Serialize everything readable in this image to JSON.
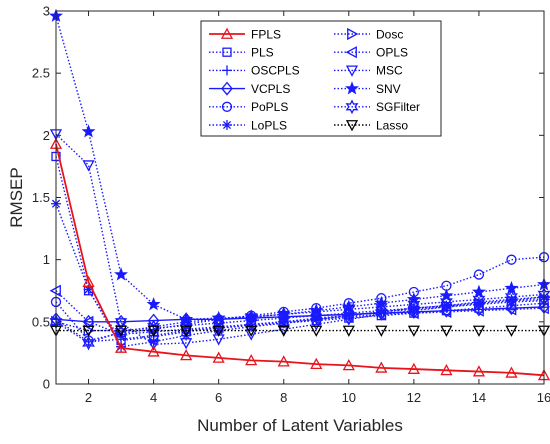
{
  "chart_data": {
    "type": "line",
    "xlabel": "Number of Latent Variables",
    "ylabel": "RMSEP",
    "xlim": [
      1,
      16
    ],
    "ylim": [
      0,
      3
    ],
    "xticks": [
      "2",
      "4",
      "6",
      "8",
      "10",
      "12",
      "14",
      "16"
    ],
    "yticks": [
      "0",
      "0.5",
      "1",
      "1.5",
      "2",
      "2.5",
      "3"
    ],
    "legend_position": "top-center",
    "grid": false,
    "x": [
      1,
      2,
      3,
      4,
      5,
      6,
      7,
      8,
      9,
      10,
      11,
      12,
      13,
      14,
      15,
      16
    ],
    "series": [
      {
        "name": "FPLS",
        "color": "#e8141c",
        "marker": "triangle-up",
        "style": "solid",
        "values": [
          1.93,
          0.82,
          0.29,
          0.26,
          0.23,
          0.21,
          0.19,
          0.18,
          0.16,
          0.15,
          0.13,
          0.12,
          0.11,
          0.1,
          0.09,
          0.07
        ]
      },
      {
        "name": "PLS",
        "color": "#1a1aff",
        "marker": "square",
        "style": "dotted",
        "values": [
          1.83,
          0.75,
          0.35,
          0.38,
          0.42,
          0.45,
          0.47,
          0.49,
          0.51,
          0.53,
          0.55,
          0.57,
          0.59,
          0.61,
          0.63,
          0.65
        ]
      },
      {
        "name": "OSCPLS",
        "color": "#1a1aff",
        "marker": "plus",
        "style": "dotted",
        "values": [
          0.52,
          0.34,
          0.36,
          0.39,
          0.43,
          0.45,
          0.48,
          0.5,
          0.53,
          0.55,
          0.58,
          0.6,
          0.62,
          0.65,
          0.67,
          0.7
        ]
      },
      {
        "name": "VCPLS",
        "color": "#1a1aff",
        "marker": "diamond",
        "style": "solid",
        "values": [
          0.52,
          0.5,
          0.5,
          0.51,
          0.52,
          0.52,
          0.53,
          0.54,
          0.55,
          0.56,
          0.57,
          0.58,
          0.59,
          0.6,
          0.61,
          0.62
        ]
      },
      {
        "name": "PoPLS",
        "color": "#1a1aff",
        "marker": "circle",
        "style": "dotted",
        "values": [
          0.66,
          0.35,
          0.41,
          0.44,
          0.48,
          0.52,
          0.55,
          0.58,
          0.61,
          0.65,
          0.69,
          0.74,
          0.79,
          0.88,
          1.0,
          1.02
        ]
      },
      {
        "name": "LoPLS",
        "color": "#1a1aff",
        "marker": "asterisk",
        "style": "dotted",
        "values": [
          1.45,
          0.76,
          0.3,
          0.34,
          0.39,
          0.43,
          0.46,
          0.49,
          0.52,
          0.55,
          0.58,
          0.61,
          0.63,
          0.66,
          0.68,
          0.7
        ]
      },
      {
        "name": "Dosc",
        "color": "#1a1aff",
        "marker": "triangle-right",
        "style": "dotted",
        "values": [
          0.5,
          0.43,
          0.43,
          0.45,
          0.47,
          0.49,
          0.51,
          0.53,
          0.55,
          0.57,
          0.59,
          0.61,
          0.63,
          0.65,
          0.67,
          0.68
        ]
      },
      {
        "name": "OPLS",
        "color": "#1a1aff",
        "marker": "triangle-left",
        "style": "dotted",
        "values": [
          0.75,
          0.5,
          0.4,
          0.42,
          0.44,
          0.46,
          0.48,
          0.5,
          0.52,
          0.54,
          0.56,
          0.57,
          0.58,
          0.59,
          0.6,
          0.61
        ]
      },
      {
        "name": "MSC",
        "color": "#1a1aff",
        "marker": "triangle-down",
        "style": "dotted",
        "values": [
          2.01,
          1.76,
          0.49,
          0.32,
          0.33,
          0.36,
          0.4,
          0.44,
          0.48,
          0.52,
          0.56,
          0.59,
          0.62,
          0.64,
          0.66,
          0.67
        ]
      },
      {
        "name": "SNV",
        "color": "#1a1aff",
        "marker": "star",
        "style": "dotted",
        "values": [
          2.96,
          2.03,
          0.88,
          0.64,
          0.52,
          0.53,
          0.54,
          0.56,
          0.59,
          0.62,
          0.65,
          0.68,
          0.71,
          0.74,
          0.77,
          0.8
        ]
      },
      {
        "name": "SGFilter",
        "color": "#1a1aff",
        "marker": "hexagram",
        "style": "dotted",
        "values": [
          0.5,
          0.33,
          0.42,
          0.46,
          0.5,
          0.52,
          0.54,
          0.56,
          0.58,
          0.6,
          0.62,
          0.64,
          0.66,
          0.68,
          0.7,
          0.72
        ]
      },
      {
        "name": "Lasso",
        "color": "#000000",
        "marker": "triangle-down",
        "style": "dotted",
        "values": [
          0.43,
          0.43,
          0.43,
          0.43,
          0.43,
          0.43,
          0.43,
          0.43,
          0.43,
          0.43,
          0.43,
          0.43,
          0.43,
          0.43,
          0.43,
          0.43
        ]
      }
    ]
  }
}
